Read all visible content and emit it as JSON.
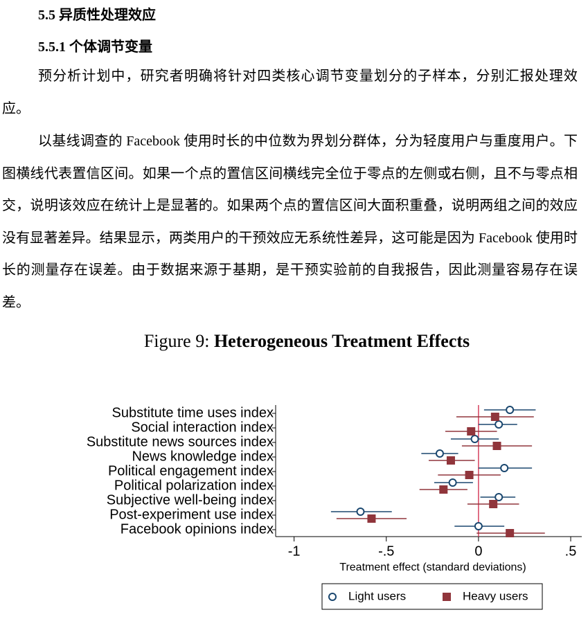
{
  "heading": "5.5 异质性处理效应",
  "subheading": "5.5.1 个体调节变量",
  "paragraphs": [
    "预分析计划中，研究者明确将针对四类核心调节变量划分的子样本，分别汇报处理效应。",
    "以基线调查的 Facebook 使用时长的中位数为界划分群体，分为轻度用户与重度用户。下图横线代表置信区间。如果一个点的置信区间横线完全位于零点的左侧或右侧，且不与零点相交，说明该效应在统计上是显著的。如果两个点的置信区间大面积重叠，说明两组之间的效应没有显著差异。结果显示，两类用户的干预效应无系统性差异，这可能是因为 Facebook 使用时长的测量存在误差。由于数据来源于基期，是干预实验前的自我报告，因此测量容易存在误差。"
  ],
  "figure": {
    "label": "Figure 9:",
    "title": "Heterogeneous Treatment Effects",
    "chart_data": {
      "type": "dot-ci",
      "x_label": "Treatment effect (standard deviations)",
      "categories": [
        "Substitute time uses index",
        "Social interaction index",
        "Substitute news sources index",
        "News knowledge index",
        "Political engagement index",
        "Political polarization index",
        "Subjective well-being index",
        "Post-experiment use index",
        "Facebook opinions index"
      ],
      "series": [
        {
          "name": "Light users",
          "color": "#1a476f",
          "marker": "circle",
          "values": [
            0.17,
            0.11,
            -0.02,
            -0.21,
            0.14,
            -0.14,
            0.11,
            -0.64,
            0.0
          ],
          "ci_low": [
            0.03,
            0.0,
            -0.15,
            -0.31,
            0.0,
            -0.24,
            0.01,
            -0.8,
            -0.13
          ],
          "ci_high": [
            0.31,
            0.21,
            0.11,
            -0.11,
            0.29,
            -0.03,
            0.2,
            -0.47,
            0.14
          ]
        },
        {
          "name": "Heavy users",
          "color": "#90353b",
          "marker": "square",
          "values": [
            0.09,
            -0.04,
            0.1,
            -0.15,
            -0.05,
            -0.19,
            0.08,
            -0.58,
            0.17
          ],
          "ci_low": [
            -0.12,
            -0.18,
            -0.09,
            -0.27,
            -0.22,
            -0.32,
            -0.06,
            -0.77,
            -0.01
          ],
          "ci_high": [
            0.3,
            0.1,
            0.29,
            -0.02,
            0.12,
            -0.06,
            0.22,
            -0.39,
            0.36
          ]
        }
      ],
      "xlim": [
        -1.1,
        0.56
      ],
      "xticks": [
        -1,
        {
          "value": -0.5,
          "label": "-.5"
        },
        0,
        {
          "value": 0.5,
          "label": ".5"
        }
      ],
      "reference_line": 0,
      "reference_color": "#d6415e",
      "legend": "bottom"
    }
  }
}
